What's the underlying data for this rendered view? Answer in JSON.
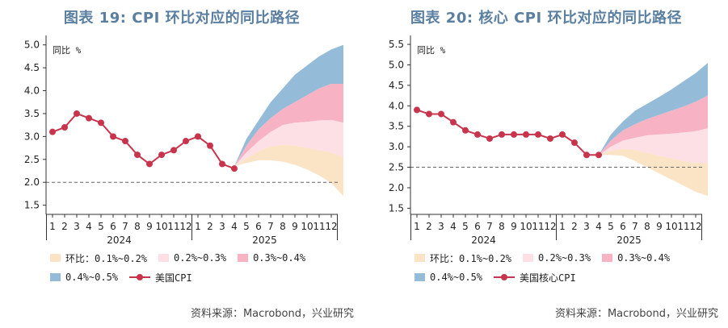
{
  "colors": {
    "title": "#5a7fa0",
    "line": "#c9344d",
    "band1": "#fbe3c6",
    "band2": "#fde0e5",
    "band3": "#f7b3c4",
    "band4": "#94bcd9",
    "dash": "#666666"
  },
  "charts": [
    {
      "title": "图表 19: CPI 环比对应的同比路径",
      "ylabel": "同比 %",
      "source": "资料来源：Macrobond，兴业研究",
      "legend": {
        "band1": "环比：0.1%~0.2%",
        "band2": "0.2%~0.3%",
        "band3": "0.3%~0.4%",
        "band4": "0.4%~0.5%",
        "line": "美国CPI"
      }
    },
    {
      "title": "图表 20: 核心 CPI 环比对应的同比路径",
      "ylabel": "同比 %",
      "source": "资料来源：Macrobond，兴业研究",
      "legend": {
        "band1": "环比：0.1%~0.2%",
        "band2": "0.2%~0.3%",
        "band3": "0.3%~0.4%",
        "band4": "0.4%~0.5%",
        "line": "美国核心CPI"
      }
    }
  ],
  "chart_data": [
    {
      "type": "area",
      "title": "图表 19: CPI 环比对应的同比路径",
      "ylabel": "同比 %",
      "x_tick_labels": [
        "1",
        "2",
        "3",
        "4",
        "5",
        "6",
        "7",
        "8",
        "9",
        "10",
        "11",
        "12",
        "1",
        "2",
        "3",
        "4",
        "5",
        "6",
        "7",
        "8",
        "9",
        "10",
        "11",
        "12"
      ],
      "year_labels": [
        "2024",
        "2025"
      ],
      "ylim": [
        1.3,
        5.1
      ],
      "yticks": [
        1.5,
        2.0,
        2.5,
        3.0,
        3.5,
        4.0,
        4.5,
        5.0
      ],
      "reference_line": 2.0,
      "actual": {
        "name": "美国CPI",
        "values": [
          3.1,
          3.2,
          3.5,
          3.4,
          3.3,
          3.0,
          2.9,
          2.6,
          2.4,
          2.6,
          2.7,
          2.9,
          3.0,
          2.8,
          2.4,
          2.3
        ]
      },
      "bands_x_start": 16,
      "bands": [
        {
          "name": "环比：0.1%~0.2%",
          "lower": [
            2.35,
            2.42,
            2.48,
            2.48,
            2.45,
            2.38,
            2.28,
            2.15,
            1.98,
            1.7
          ],
          "upper": [
            2.35,
            2.52,
            2.68,
            2.78,
            2.82,
            2.8,
            2.75,
            2.7,
            2.65,
            2.55
          ]
        },
        {
          "name": "0.2%~0.3%",
          "lower": [
            2.35,
            2.52,
            2.68,
            2.78,
            2.82,
            2.8,
            2.75,
            2.7,
            2.65,
            2.55
          ],
          "upper": [
            2.35,
            2.65,
            2.9,
            3.1,
            3.25,
            3.3,
            3.32,
            3.35,
            3.36,
            3.3
          ]
        },
        {
          "name": "0.3%~0.4%",
          "lower": [
            2.35,
            2.65,
            2.9,
            3.1,
            3.25,
            3.3,
            3.32,
            3.35,
            3.36,
            3.3
          ],
          "upper": [
            2.35,
            2.8,
            3.15,
            3.4,
            3.6,
            3.75,
            3.9,
            4.05,
            4.15,
            4.15
          ]
        },
        {
          "name": "0.4%~0.5%",
          "lower": [
            2.35,
            2.8,
            3.15,
            3.4,
            3.6,
            3.75,
            3.9,
            4.05,
            4.15,
            4.15
          ],
          "upper": [
            2.35,
            2.95,
            3.35,
            3.75,
            4.05,
            4.35,
            4.55,
            4.75,
            4.9,
            5.0
          ]
        }
      ]
    },
    {
      "type": "area",
      "title": "图表 20: 核心 CPI 环比对应的同比路径",
      "ylabel": "同比 %",
      "x_tick_labels": [
        "1",
        "2",
        "3",
        "4",
        "5",
        "6",
        "7",
        "8",
        "9",
        "10",
        "11",
        "12",
        "1",
        "2",
        "3",
        "4",
        "5",
        "6",
        "7",
        "8",
        "9",
        "10",
        "11",
        "12"
      ],
      "year_labels": [
        "2024",
        "2025"
      ],
      "ylim": [
        1.35,
        5.6
      ],
      "yticks": [
        1.5,
        2.0,
        2.5,
        3.0,
        3.5,
        4.0,
        4.5,
        5.0,
        5.5
      ],
      "reference_line": 2.5,
      "actual": {
        "name": "美国核心CPI",
        "values": [
          3.9,
          3.8,
          3.8,
          3.6,
          3.4,
          3.3,
          3.2,
          3.3,
          3.3,
          3.3,
          3.3,
          3.2,
          3.3,
          3.1,
          2.8,
          2.8
        ]
      },
      "bands_x_start": 16,
      "bands": [
        {
          "name": "环比：0.1%~0.2%",
          "lower": [
            2.8,
            2.8,
            2.78,
            2.65,
            2.5,
            2.35,
            2.2,
            2.05,
            1.9,
            1.8
          ],
          "upper": [
            2.8,
            2.9,
            2.95,
            2.92,
            2.85,
            2.78,
            2.72,
            2.65,
            2.6,
            2.6
          ]
        },
        {
          "name": "0.2%~0.3%",
          "lower": [
            2.8,
            2.9,
            2.95,
            2.92,
            2.85,
            2.78,
            2.72,
            2.65,
            2.6,
            2.6
          ],
          "upper": [
            2.8,
            3.0,
            3.15,
            3.22,
            3.28,
            3.3,
            3.32,
            3.35,
            3.38,
            3.45
          ]
        },
        {
          "name": "0.3%~0.4%",
          "lower": [
            2.8,
            3.0,
            3.15,
            3.22,
            3.28,
            3.3,
            3.32,
            3.35,
            3.38,
            3.45
          ],
          "upper": [
            2.8,
            3.15,
            3.4,
            3.55,
            3.68,
            3.78,
            3.88,
            3.98,
            4.1,
            4.25
          ]
        },
        {
          "name": "0.4%~0.5%",
          "lower": [
            2.8,
            3.15,
            3.4,
            3.55,
            3.68,
            3.78,
            3.88,
            3.98,
            4.1,
            4.25
          ],
          "upper": [
            2.8,
            3.3,
            3.62,
            3.88,
            4.05,
            4.22,
            4.4,
            4.6,
            4.8,
            5.05
          ]
        }
      ]
    }
  ]
}
